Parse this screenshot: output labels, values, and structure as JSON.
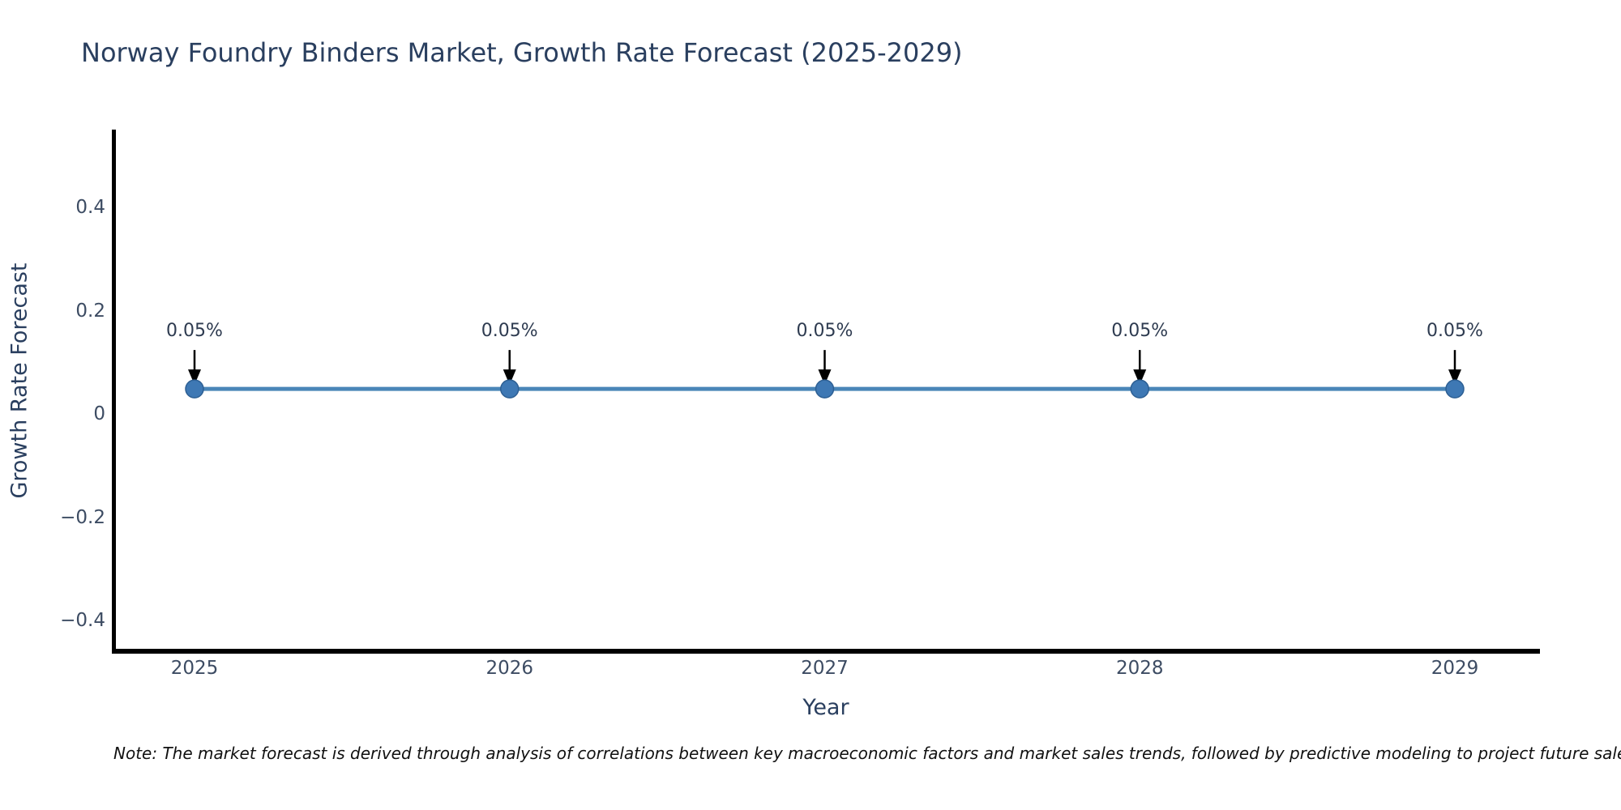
{
  "chart_data": {
    "type": "line",
    "title": "Norway Foundry Binders Market, Growth Rate Forecast (2025-2029)",
    "xlabel": "Year",
    "ylabel": "Growth Rate Forecast",
    "categories": [
      "2025",
      "2026",
      "2027",
      "2028",
      "2029"
    ],
    "series": [
      {
        "name": "Growth Rate Forecast",
        "values": [
          0.05,
          0.05,
          0.05,
          0.05,
          0.05
        ]
      }
    ],
    "point_labels": [
      "0.05%",
      "0.05%",
      "0.05%",
      "0.05%",
      "0.05%"
    ],
    "yticks": [
      0.4,
      0.2,
      0,
      -0.2,
      -0.4
    ],
    "ytick_labels": [
      "0.4",
      "0.2",
      "0",
      "−0.2",
      "−0.4"
    ],
    "ylim": [
      -0.46,
      0.55
    ],
    "grid": false,
    "legend_position": "none",
    "annotation_style": "value-with-down-arrow",
    "colors": {
      "line": "#4a86b8",
      "marker": "#3e78b4",
      "marker_edge": "#2d5f93",
      "axis_spine": "#000000",
      "title_text": "#2a3f5f",
      "tick_text": "#3d4c63",
      "annotation_arrow": "#000000",
      "background": "#ffffff"
    }
  },
  "note": {
    "text": "Note: The market forecast is derived through analysis of correlations between key macroeconomic factors and market sales trends, followed by predictive modeling to project future sales"
  }
}
